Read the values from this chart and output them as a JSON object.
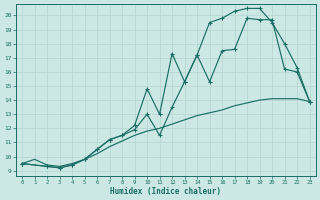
{
  "bg_color": "#cce8e4",
  "line_color": "#1a6e64",
  "grid_color": "#b8d8d4",
  "xlabel": "Humidex (Indice chaleur)",
  "xlim_min": -0.5,
  "xlim_max": 23.5,
  "ylim_min": 8.6,
  "ylim_max": 20.8,
  "xticks": [
    0,
    1,
    2,
    3,
    4,
    5,
    6,
    7,
    8,
    9,
    10,
    11,
    12,
    13,
    14,
    15,
    16,
    17,
    18,
    19,
    20,
    21,
    22,
    23
  ],
  "yticks": [
    9,
    10,
    11,
    12,
    13,
    14,
    15,
    16,
    17,
    18,
    19,
    20
  ],
  "line1_x": [
    0,
    1,
    2,
    3,
    4,
    5,
    6,
    7,
    8,
    9,
    10,
    11,
    12,
    13,
    14,
    15,
    16,
    17,
    18,
    19,
    20,
    21,
    22,
    23
  ],
  "line1_y": [
    9.5,
    9.8,
    9.4,
    9.3,
    9.5,
    9.8,
    10.2,
    10.7,
    11.1,
    11.5,
    11.8,
    12.0,
    12.3,
    12.6,
    12.9,
    13.1,
    13.3,
    13.6,
    13.8,
    14.0,
    14.1,
    14.1,
    14.1,
    13.9
  ],
  "line2_x": [
    0,
    2,
    3,
    4,
    5,
    6,
    7,
    8,
    9,
    10,
    11,
    12,
    13,
    14,
    15,
    16,
    17,
    18,
    19,
    20,
    21,
    22,
    23
  ],
  "line2_y": [
    9.5,
    9.3,
    9.2,
    9.4,
    9.8,
    10.5,
    11.2,
    11.5,
    11.9,
    13.0,
    11.5,
    13.5,
    15.3,
    17.2,
    15.3,
    17.5,
    17.6,
    19.8,
    19.7,
    19.7,
    16.2,
    16.0,
    13.9
  ],
  "line3_x": [
    0,
    2,
    3,
    4,
    5,
    6,
    7,
    8,
    9,
    10,
    11,
    12,
    13,
    14,
    15,
    16,
    17,
    18,
    19,
    20,
    21,
    22,
    23
  ],
  "line3_y": [
    9.5,
    9.3,
    9.2,
    9.4,
    9.8,
    10.5,
    11.2,
    11.5,
    12.2,
    14.8,
    13.0,
    17.3,
    15.3,
    17.2,
    19.5,
    19.8,
    20.3,
    20.5,
    20.5,
    19.5,
    18.0,
    16.3,
    13.9
  ]
}
